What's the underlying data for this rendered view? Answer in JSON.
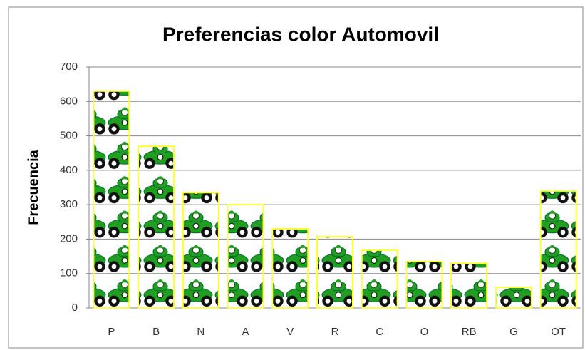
{
  "chart_data": {
    "type": "bar",
    "title": "Preferencias color Automovil",
    "y_label": "Frecuencia",
    "categories": [
      "P",
      "B",
      "N",
      "A",
      "V",
      "R",
      "C",
      "O",
      "RB",
      "G",
      "OT"
    ],
    "values": [
      630,
      470,
      335,
      300,
      230,
      207,
      168,
      135,
      130,
      60,
      340
    ],
    "color": "#1f9e1f",
    "edge_color": "#ffff33",
    "ylim": [
      0,
      700
    ],
    "yticks": [
      0,
      100,
      200,
      300,
      400,
      500,
      600,
      700
    ],
    "grid": true
  }
}
